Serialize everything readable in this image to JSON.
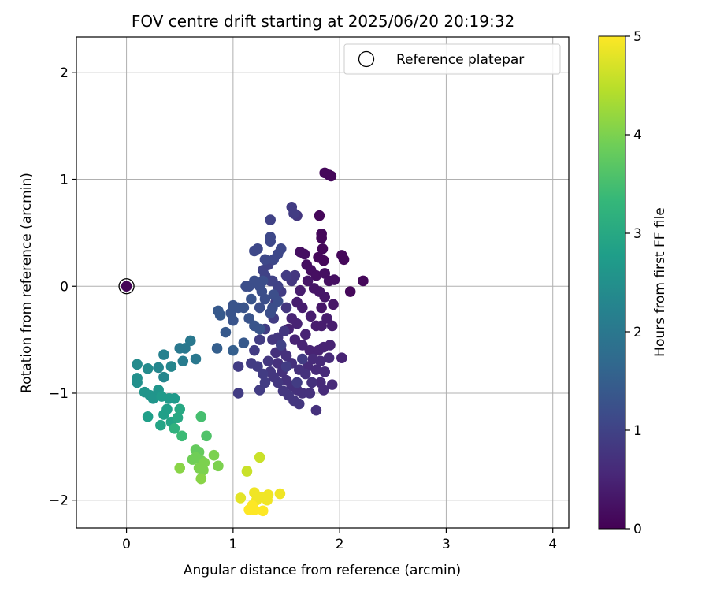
{
  "chart_data": {
    "type": "scatter",
    "title": "FOV centre drift starting at 2025/06/20 20:19:32",
    "xlabel": "Angular distance from reference (arcmin)",
    "ylabel": "Rotation from reference (arcmin)",
    "xlim": [
      -0.47,
      4.15
    ],
    "ylim": [
      -2.26,
      2.33
    ],
    "xticks": [
      0,
      1,
      2,
      3,
      4
    ],
    "yticks": [
      -2,
      -1,
      0,
      1,
      2
    ],
    "xtick_labels": [
      "0",
      "1",
      "2",
      "3",
      "4"
    ],
    "ytick_labels": [
      "−2",
      "−1",
      "0",
      "1",
      "2"
    ],
    "grid": true,
    "legend": {
      "position": "top-right",
      "entries": [
        "Reference platepar"
      ]
    },
    "reference_point": {
      "x": 0,
      "y": 0,
      "c": 0.05
    },
    "colorbar": {
      "label": "Hours from first FF file",
      "range": [
        0,
        5
      ],
      "ticks": [
        0,
        1,
        2,
        3,
        4,
        5
      ],
      "colormap": "viridis",
      "stops": [
        "#440154",
        "#482878",
        "#3e4989",
        "#31688e",
        "#26828e",
        "#1f9e89",
        "#35b779",
        "#6ece58",
        "#b5de2b",
        "#fde725"
      ]
    },
    "points": [
      {
        "x": 1.86,
        "y": 1.06,
        "c": 0.1
      },
      {
        "x": 1.9,
        "y": 1.04,
        "c": 0.1
      },
      {
        "x": 1.92,
        "y": 1.03,
        "c": 0.1
      },
      {
        "x": 1.81,
        "y": 0.66,
        "c": 0.1
      },
      {
        "x": 1.83,
        "y": 0.49,
        "c": 0.1
      },
      {
        "x": 1.83,
        "y": 0.45,
        "c": 0.1
      },
      {
        "x": 1.84,
        "y": 0.35,
        "c": 0.1
      },
      {
        "x": 1.85,
        "y": 0.24,
        "c": 0.1
      },
      {
        "x": 1.8,
        "y": 0.27,
        "c": 0.1
      },
      {
        "x": 1.63,
        "y": 0.32,
        "c": 0.2
      },
      {
        "x": 1.67,
        "y": 0.3,
        "c": 0.2
      },
      {
        "x": 1.69,
        "y": 0.2,
        "c": 0.2
      },
      {
        "x": 1.73,
        "y": 0.15,
        "c": 0.2
      },
      {
        "x": 1.78,
        "y": 0.1,
        "c": 0.2
      },
      {
        "x": 1.86,
        "y": 0.12,
        "c": 0.2
      },
      {
        "x": 1.9,
        "y": 0.05,
        "c": 0.2
      },
      {
        "x": 1.95,
        "y": 0.06,
        "c": 0.2
      },
      {
        "x": 2.02,
        "y": 0.29,
        "c": 0.1
      },
      {
        "x": 2.04,
        "y": 0.25,
        "c": 0.1
      },
      {
        "x": 2.22,
        "y": 0.05,
        "c": 0.1
      },
      {
        "x": 2.1,
        "y": -0.05,
        "c": 0.1
      },
      {
        "x": 1.7,
        "y": 0.05,
        "c": 0.3
      },
      {
        "x": 1.76,
        "y": -0.02,
        "c": 0.3
      },
      {
        "x": 1.81,
        "y": -0.05,
        "c": 0.3
      },
      {
        "x": 1.86,
        "y": -0.1,
        "c": 0.3
      },
      {
        "x": 1.83,
        "y": -0.2,
        "c": 0.3
      },
      {
        "x": 1.94,
        "y": -0.17,
        "c": 0.3
      },
      {
        "x": 1.63,
        "y": -0.04,
        "c": 0.4
      },
      {
        "x": 1.6,
        "y": -0.15,
        "c": 0.4
      },
      {
        "x": 1.65,
        "y": -0.2,
        "c": 0.4
      },
      {
        "x": 1.73,
        "y": -0.28,
        "c": 0.4
      },
      {
        "x": 1.78,
        "y": -0.37,
        "c": 0.4
      },
      {
        "x": 1.83,
        "y": -0.37,
        "c": 0.4
      },
      {
        "x": 1.88,
        "y": -0.3,
        "c": 0.4
      },
      {
        "x": 1.93,
        "y": -0.37,
        "c": 0.4
      },
      {
        "x": 1.68,
        "y": -0.45,
        "c": 0.5
      },
      {
        "x": 1.6,
        "y": -0.35,
        "c": 0.5
      },
      {
        "x": 1.55,
        "y": -0.3,
        "c": 0.5
      },
      {
        "x": 1.52,
        "y": -0.4,
        "c": 0.5
      },
      {
        "x": 1.58,
        "y": -0.5,
        "c": 0.5
      },
      {
        "x": 1.65,
        "y": -0.55,
        "c": 0.5
      },
      {
        "x": 1.72,
        "y": -0.6,
        "c": 0.5
      },
      {
        "x": 1.8,
        "y": -0.6,
        "c": 0.5
      },
      {
        "x": 1.85,
        "y": -0.57,
        "c": 0.5
      },
      {
        "x": 1.91,
        "y": -0.55,
        "c": 0.5
      },
      {
        "x": 2.02,
        "y": -0.67,
        "c": 0.5
      },
      {
        "x": 1.9,
        "y": -0.67,
        "c": 0.6
      },
      {
        "x": 1.82,
        "y": -0.7,
        "c": 0.6
      },
      {
        "x": 1.75,
        "y": -0.68,
        "c": 0.6
      },
      {
        "x": 1.7,
        "y": -0.75,
        "c": 0.6
      },
      {
        "x": 1.78,
        "y": -0.78,
        "c": 0.6
      },
      {
        "x": 1.86,
        "y": -0.8,
        "c": 0.6
      },
      {
        "x": 1.93,
        "y": -0.92,
        "c": 0.6
      },
      {
        "x": 1.82,
        "y": -0.9,
        "c": 0.6
      },
      {
        "x": 1.85,
        "y": -0.97,
        "c": 0.6
      },
      {
        "x": 1.74,
        "y": -0.9,
        "c": 0.7
      },
      {
        "x": 1.68,
        "y": -0.82,
        "c": 0.7
      },
      {
        "x": 1.62,
        "y": -0.78,
        "c": 0.7
      },
      {
        "x": 1.55,
        "y": -0.72,
        "c": 0.7
      },
      {
        "x": 1.5,
        "y": -0.65,
        "c": 0.7
      },
      {
        "x": 1.45,
        "y": -0.6,
        "c": 0.7
      },
      {
        "x": 1.4,
        "y": -0.62,
        "c": 0.7
      },
      {
        "x": 1.42,
        "y": -0.72,
        "c": 0.7
      },
      {
        "x": 1.46,
        "y": -0.8,
        "c": 0.7
      },
      {
        "x": 1.5,
        "y": -0.88,
        "c": 0.7
      },
      {
        "x": 1.55,
        "y": -0.93,
        "c": 0.7
      },
      {
        "x": 1.6,
        "y": -0.97,
        "c": 0.7
      },
      {
        "x": 1.65,
        "y": -1.0,
        "c": 0.7
      },
      {
        "x": 1.72,
        "y": -1.0,
        "c": 0.7
      },
      {
        "x": 1.78,
        "y": -1.16,
        "c": 0.7
      },
      {
        "x": 1.62,
        "y": -1.1,
        "c": 0.8
      },
      {
        "x": 1.57,
        "y": -1.07,
        "c": 0.8
      },
      {
        "x": 1.52,
        "y": -1.02,
        "c": 0.8
      },
      {
        "x": 1.47,
        "y": -0.98,
        "c": 0.8
      },
      {
        "x": 1.42,
        "y": -0.9,
        "c": 0.8
      },
      {
        "x": 1.38,
        "y": -0.85,
        "c": 0.8
      },
      {
        "x": 1.35,
        "y": -0.8,
        "c": 0.8
      },
      {
        "x": 1.33,
        "y": -0.7,
        "c": 0.8
      },
      {
        "x": 1.37,
        "y": -0.5,
        "c": 0.8
      },
      {
        "x": 1.42,
        "y": -0.48,
        "c": 0.8
      },
      {
        "x": 1.48,
        "y": -0.42,
        "c": 0.8
      },
      {
        "x": 1.5,
        "y": -0.2,
        "c": 0.8
      },
      {
        "x": 1.55,
        "y": 0.05,
        "c": 0.8
      },
      {
        "x": 1.58,
        "y": 0.1,
        "c": 0.8
      },
      {
        "x": 1.6,
        "y": 0.66,
        "c": 0.8
      },
      {
        "x": 1.57,
        "y": 0.68,
        "c": 0.9
      },
      {
        "x": 1.55,
        "y": 0.74,
        "c": 0.9
      },
      {
        "x": 1.5,
        "y": 0.1,
        "c": 0.9
      },
      {
        "x": 1.45,
        "y": -0.05,
        "c": 0.9
      },
      {
        "x": 1.4,
        "y": -0.15,
        "c": 0.9
      },
      {
        "x": 1.38,
        "y": -0.3,
        "c": 0.9
      },
      {
        "x": 1.3,
        "y": -0.4,
        "c": 0.9
      },
      {
        "x": 1.25,
        "y": -0.5,
        "c": 0.9
      },
      {
        "x": 1.2,
        "y": -0.6,
        "c": 0.9
      },
      {
        "x": 1.17,
        "y": -0.72,
        "c": 0.9
      },
      {
        "x": 1.23,
        "y": -0.75,
        "c": 0.9
      },
      {
        "x": 1.28,
        "y": -0.82,
        "c": 0.9
      },
      {
        "x": 1.05,
        "y": -0.75,
        "c": 0.9
      },
      {
        "x": 1.05,
        "y": -1.0,
        "c": 0.9
      },
      {
        "x": 1.25,
        "y": -0.97,
        "c": 0.9
      },
      {
        "x": 1.3,
        "y": -0.9,
        "c": 0.9
      },
      {
        "x": 1.6,
        "y": -0.9,
        "c": 0.9
      },
      {
        "x": 1.5,
        "y": -0.75,
        "c": 0.9
      },
      {
        "x": 1.65,
        "y": -0.68,
        "c": 0.9
      },
      {
        "x": 1.45,
        "y": -0.55,
        "c": 1.0
      },
      {
        "x": 1.35,
        "y": 0.62,
        "c": 1.0
      },
      {
        "x": 1.37,
        "y": 0.05,
        "c": 1.0
      },
      {
        "x": 1.42,
        "y": 0.0,
        "c": 1.0
      },
      {
        "x": 1.35,
        "y": 0.05,
        "c": 1.0
      },
      {
        "x": 1.3,
        "y": 0.1,
        "c": 1.0
      },
      {
        "x": 1.28,
        "y": 0.15,
        "c": 1.0
      },
      {
        "x": 1.33,
        "y": 0.2,
        "c": 1.0
      },
      {
        "x": 1.38,
        "y": 0.25,
        "c": 1.1
      },
      {
        "x": 1.42,
        "y": 0.3,
        "c": 1.1
      },
      {
        "x": 1.45,
        "y": 0.35,
        "c": 1.1
      },
      {
        "x": 1.35,
        "y": 0.42,
        "c": 1.1
      },
      {
        "x": 1.35,
        "y": 0.46,
        "c": 1.1
      },
      {
        "x": 1.23,
        "y": 0.35,
        "c": 1.1
      },
      {
        "x": 1.2,
        "y": 0.33,
        "c": 1.1
      },
      {
        "x": 1.3,
        "y": 0.25,
        "c": 1.1
      },
      {
        "x": 1.28,
        "y": 0.05,
        "c": 1.2
      },
      {
        "x": 1.25,
        "y": 0.0,
        "c": 1.2
      },
      {
        "x": 1.2,
        "y": 0.05,
        "c": 1.2
      },
      {
        "x": 1.15,
        "y": 0.0,
        "c": 1.2
      },
      {
        "x": 1.12,
        "y": 0.0,
        "c": 1.2
      },
      {
        "x": 1.27,
        "y": -0.05,
        "c": 1.2
      },
      {
        "x": 1.3,
        "y": -0.12,
        "c": 1.2
      },
      {
        "x": 1.25,
        "y": -0.2,
        "c": 1.2
      },
      {
        "x": 1.38,
        "y": -0.08,
        "c": 1.2
      },
      {
        "x": 1.42,
        "y": -0.14,
        "c": 1.2
      },
      {
        "x": 1.37,
        "y": -0.2,
        "c": 1.2
      },
      {
        "x": 1.35,
        "y": -0.25,
        "c": 1.2
      },
      {
        "x": 1.17,
        "y": -0.12,
        "c": 1.3
      },
      {
        "x": 1.1,
        "y": -0.2,
        "c": 1.3
      },
      {
        "x": 1.05,
        "y": -0.2,
        "c": 1.3
      },
      {
        "x": 1.0,
        "y": -0.18,
        "c": 1.3
      },
      {
        "x": 0.98,
        "y": -0.25,
        "c": 1.3
      },
      {
        "x": 1.0,
        "y": -0.32,
        "c": 1.3
      },
      {
        "x": 1.15,
        "y": -0.3,
        "c": 1.3
      },
      {
        "x": 1.2,
        "y": -0.37,
        "c": 1.3
      },
      {
        "x": 1.25,
        "y": -0.4,
        "c": 1.3
      },
      {
        "x": 1.1,
        "y": -0.53,
        "c": 1.4
      },
      {
        "x": 0.93,
        "y": -0.43,
        "c": 1.4
      },
      {
        "x": 0.88,
        "y": -0.27,
        "c": 1.4
      },
      {
        "x": 0.86,
        "y": -0.23,
        "c": 1.4
      },
      {
        "x": 0.85,
        "y": -0.58,
        "c": 1.5
      },
      {
        "x": 1.0,
        "y": -0.6,
        "c": 1.5
      },
      {
        "x": 0.6,
        "y": -0.51,
        "c": 2.0
      },
      {
        "x": 0.55,
        "y": -0.58,
        "c": 2.0
      },
      {
        "x": 0.5,
        "y": -0.58,
        "c": 2.0
      },
      {
        "x": 0.65,
        "y": -0.68,
        "c": 2.0
      },
      {
        "x": 0.53,
        "y": -0.7,
        "c": 2.1
      },
      {
        "x": 0.35,
        "y": -0.64,
        "c": 2.2
      },
      {
        "x": 0.3,
        "y": -0.76,
        "c": 2.3
      },
      {
        "x": 0.42,
        "y": -0.75,
        "c": 2.3
      },
      {
        "x": 0.35,
        "y": -0.85,
        "c": 2.3
      },
      {
        "x": 0.2,
        "y": -0.77,
        "c": 2.4
      },
      {
        "x": 0.1,
        "y": -0.73,
        "c": 2.4
      },
      {
        "x": 0.1,
        "y": -0.86,
        "c": 2.5
      },
      {
        "x": 0.1,
        "y": -0.9,
        "c": 2.5
      },
      {
        "x": 0.17,
        "y": -0.99,
        "c": 2.6
      },
      {
        "x": 0.22,
        "y": -1.02,
        "c": 2.6
      },
      {
        "x": 0.25,
        "y": -1.05,
        "c": 2.6
      },
      {
        "x": 0.3,
        "y": -0.97,
        "c": 2.6
      },
      {
        "x": 0.33,
        "y": -1.03,
        "c": 2.7
      },
      {
        "x": 0.4,
        "y": -1.05,
        "c": 2.7
      },
      {
        "x": 0.45,
        "y": -1.05,
        "c": 2.7
      },
      {
        "x": 0.2,
        "y": -1.22,
        "c": 2.8
      },
      {
        "x": 0.35,
        "y": -1.2,
        "c": 2.8
      },
      {
        "x": 0.38,
        "y": -1.15,
        "c": 2.8
      },
      {
        "x": 0.42,
        "y": -1.27,
        "c": 2.9
      },
      {
        "x": 0.32,
        "y": -1.3,
        "c": 2.9
      },
      {
        "x": 0.5,
        "y": -1.15,
        "c": 3.0
      },
      {
        "x": 0.48,
        "y": -1.23,
        "c": 3.0
      },
      {
        "x": 0.45,
        "y": -1.33,
        "c": 3.2
      },
      {
        "x": 0.52,
        "y": -1.4,
        "c": 3.4
      },
      {
        "x": 0.7,
        "y": -1.22,
        "c": 3.5
      },
      {
        "x": 0.75,
        "y": -1.4,
        "c": 3.6
      },
      {
        "x": 0.65,
        "y": -1.53,
        "c": 3.8
      },
      {
        "x": 0.68,
        "y": -1.55,
        "c": 3.8
      },
      {
        "x": 0.65,
        "y": -1.6,
        "c": 3.9
      },
      {
        "x": 0.62,
        "y": -1.62,
        "c": 3.9
      },
      {
        "x": 0.7,
        "y": -1.63,
        "c": 3.9
      },
      {
        "x": 0.73,
        "y": -1.65,
        "c": 4.0
      },
      {
        "x": 0.68,
        "y": -1.7,
        "c": 4.0
      },
      {
        "x": 0.72,
        "y": -1.72,
        "c": 4.0
      },
      {
        "x": 0.82,
        "y": -1.58,
        "c": 4.0
      },
      {
        "x": 0.86,
        "y": -1.68,
        "c": 4.0
      },
      {
        "x": 0.5,
        "y": -1.7,
        "c": 4.1
      },
      {
        "x": 0.7,
        "y": -1.8,
        "c": 4.1
      },
      {
        "x": 1.25,
        "y": -1.6,
        "c": 4.6
      },
      {
        "x": 1.13,
        "y": -1.73,
        "c": 4.6
      },
      {
        "x": 1.07,
        "y": -1.98,
        "c": 4.8
      },
      {
        "x": 1.2,
        "y": -1.93,
        "c": 4.9
      },
      {
        "x": 1.22,
        "y": -2.0,
        "c": 4.9
      },
      {
        "x": 1.27,
        "y": -1.97,
        "c": 4.9
      },
      {
        "x": 1.33,
        "y": -1.95,
        "c": 4.9
      },
      {
        "x": 1.32,
        "y": -2.0,
        "c": 4.9
      },
      {
        "x": 1.44,
        "y": -1.94,
        "c": 4.9
      },
      {
        "x": 1.18,
        "y": -2.05,
        "c": 5.0
      },
      {
        "x": 1.15,
        "y": -2.09,
        "c": 5.0
      },
      {
        "x": 1.2,
        "y": -2.09,
        "c": 5.0
      },
      {
        "x": 1.28,
        "y": -2.1,
        "c": 5.0
      }
    ]
  }
}
